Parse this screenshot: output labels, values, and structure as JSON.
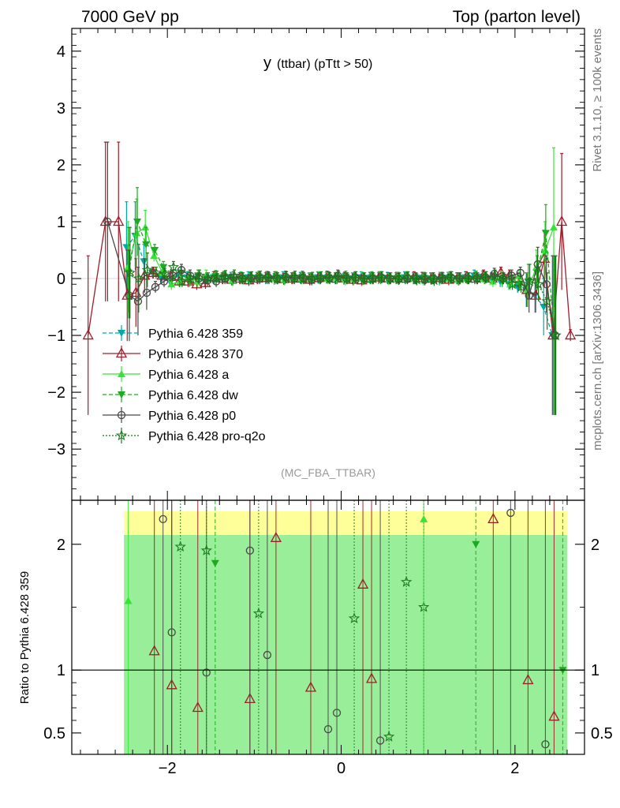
{
  "header": {
    "left": "7000 GeV pp",
    "right": "Top (parton level)"
  },
  "side_labels": {
    "rivet": "Rivet 3.1.10, ≥ 100k events",
    "mcplots": "mcplots.cern.ch [arXiv:1306.3436]"
  },
  "chart_data": [
    {
      "type": "line",
      "title": "y (ttbar) (pTtt > 50)",
      "title_main": "y",
      "title_sub": "(ttbar)  (pTtt > 50)",
      "watermark": "(MC_FBA_TTBAR)",
      "xlabel": "",
      "ylabel": "",
      "xlim": [
        -3.1,
        2.8
      ],
      "ylim": [
        -3.9,
        4.4
      ],
      "xticks": [
        -2,
        0,
        2
      ],
      "yticks": [
        -3,
        -2,
        -1,
        0,
        1,
        2,
        3,
        4
      ],
      "grid": false,
      "legend_position": "middle-left",
      "x": [
        -2.9,
        -2.7,
        -2.55,
        -2.45,
        -2.35,
        -2.25,
        -2.15,
        -2.05,
        -1.95,
        -1.85,
        -1.75,
        -1.65,
        -1.55,
        -1.45,
        -1.35,
        -1.25,
        -1.15,
        -1.05,
        -0.95,
        -0.85,
        -0.75,
        -0.65,
        -0.55,
        -0.45,
        -0.35,
        -0.25,
        -0.15,
        -0.05,
        0.05,
        0.15,
        0.25,
        0.35,
        0.45,
        0.55,
        0.65,
        0.75,
        0.85,
        0.95,
        1.05,
        1.15,
        1.25,
        1.35,
        1.45,
        1.55,
        1.65,
        1.75,
        1.85,
        1.95,
        2.05,
        2.15,
        2.25,
        2.35,
        2.45,
        2.55,
        2.65
      ],
      "series": [
        {
          "name": "Pythia 6.428 359",
          "color": "#00a8a8",
          "marker": "triangle-down-filled",
          "line": "dashed",
          "y": [
            null,
            null,
            null,
            0.55,
            0.75,
            0.3,
            0.1,
            0.0,
            -0.05,
            0.05,
            0.02,
            0.0,
            -0.05,
            0.02,
            0.0,
            0.01,
            0.0,
            0.02,
            0.01,
            0.0,
            -0.01,
            0.02,
            0.0,
            0.01,
            0.0,
            0.02,
            0.01,
            0.0,
            -0.01,
            0.0,
            0.02,
            0.01,
            0.0,
            0.01,
            0.0,
            0.02,
            0.0,
            0.01,
            0.0,
            -0.02,
            0.01,
            0.0,
            0.02,
            0.05,
            0.03,
            0.0,
            -0.05,
            -0.1,
            -0.15,
            -0.2,
            -0.3,
            -0.5,
            -1.0,
            null,
            null
          ]
        },
        {
          "name": "Pythia 6.428 370",
          "color": "#a01c28",
          "marker": "triangle-open",
          "line": "solid",
          "y": [
            -1.0,
            1.0,
            1.0,
            -0.3,
            -0.25,
            0.05,
            0.1,
            0.05,
            0.03,
            -0.05,
            -0.05,
            -0.1,
            -0.08,
            0.02,
            0.0,
            -0.02,
            0.0,
            -0.03,
            0.0,
            0.01,
            0.02,
            -0.01,
            0.0,
            0.0,
            -0.02,
            0.01,
            0.03,
            0.0,
            0.01,
            -0.02,
            -0.03,
            0.0,
            0.02,
            0.0,
            0.01,
            0.0,
            0.02,
            0.01,
            0.0,
            0.01,
            -0.02,
            0.0,
            0.02,
            0.0,
            0.05,
            0.0,
            0.1,
            0.05,
            0.0,
            -0.2,
            -0.3,
            0.35,
            -1.0,
            1.0,
            -1.0
          ]
        },
        {
          "name": "Pythia 6.428 a",
          "color": "#36e436",
          "marker": "triangle-up-filled",
          "line": "solid",
          "y": [
            null,
            null,
            null,
            0.2,
            0.8,
            0.9,
            0.4,
            0.1,
            -0.1,
            -0.05,
            0.03,
            -0.05,
            0.05,
            0.0,
            0.02,
            -0.03,
            0.02,
            0.0,
            0.01,
            0.03,
            0.0,
            -0.02,
            0.01,
            0.0,
            -0.01,
            0.02,
            0.0,
            0.01,
            -0.02,
            0.0,
            0.01,
            0.0,
            0.02,
            -0.01,
            0.0,
            0.01,
            0.0,
            -0.02,
            0.0,
            0.01,
            0.0,
            -0.02,
            0.0,
            0.02,
            0.0,
            -0.05,
            0.03,
            -0.1,
            0.05,
            -0.2,
            0.2,
            0.5,
            0.9,
            null,
            null
          ]
        },
        {
          "name": "Pythia 6.428 dw",
          "color": "#1eaa1e",
          "marker": "triangle-down-filled",
          "line": "dashed",
          "y": [
            null,
            null,
            null,
            0.1,
            1.0,
            0.6,
            0.5,
            0.2,
            0.0,
            0.1,
            -0.05,
            0.05,
            0.0,
            0.04,
            0.03,
            -0.02,
            0.01,
            0.0,
            0.03,
            0.0,
            0.02,
            0.0,
            0.01,
            0.03,
            0.0,
            0.0,
            0.02,
            0.0,
            0.03,
            0.0,
            -0.01,
            0.02,
            0.0,
            0.0,
            0.01,
            0.02,
            0.0,
            0.01,
            0.0,
            0.0,
            0.02,
            -0.02,
            0.0,
            0.03,
            0.0,
            0.0,
            -0.05,
            0.02,
            -0.1,
            -0.05,
            0.1,
            0.8,
            -1.0,
            null,
            null
          ]
        },
        {
          "name": "Pythia 6.428 p0",
          "color": "#474747",
          "marker": "circle-open",
          "line": "solid",
          "y": [
            null,
            1.0,
            null,
            -0.3,
            -0.4,
            -0.25,
            -0.15,
            -0.05,
            0.05,
            0.15,
            0.05,
            0.0,
            -0.03,
            -0.05,
            0.0,
            0.02,
            0.0,
            0.01,
            0.0,
            0.02,
            0.0,
            0.03,
            0.0,
            0.01,
            -0.02,
            0.0,
            0.01,
            0.05,
            0.0,
            0.02,
            0.0,
            0.0,
            0.02,
            0.0,
            -0.01,
            0.0,
            0.0,
            -0.02,
            0.0,
            0.01,
            0.02,
            0.0,
            0.0,
            0.0,
            0.02,
            0.08,
            0.0,
            0.05,
            0.1,
            -0.3,
            0.25,
            -0.1,
            -1.0,
            null,
            null
          ]
        },
        {
          "name": "Pythia 6.428 pro-q2o",
          "color": "#1c7a1c",
          "marker": "star-open",
          "line": "dotted",
          "y": [
            null,
            null,
            null,
            0.1,
            0.0,
            0.15,
            0.1,
            0.08,
            0.2,
            -0.05,
            0.0,
            0.05,
            0.0,
            0.03,
            0.04,
            0.05,
            0.0,
            0.02,
            0.03,
            0.0,
            0.0,
            0.02,
            0.03,
            0.0,
            0.01,
            0.02,
            0.0,
            0.03,
            0.0,
            0.02,
            0.0,
            0.0,
            0.02,
            0.0,
            0.0,
            0.02,
            -0.02,
            0.0,
            -0.03,
            0.0,
            0.02,
            0.0,
            0.0,
            0.0,
            0.02,
            0.05,
            0.0,
            -0.1,
            -0.15,
            -0.05,
            -0.1,
            -0.4,
            -1.0,
            null,
            null
          ]
        }
      ],
      "error_bars": {
        "large_edges": [
          [
            -2.9,
            1.4
          ],
          [
            -2.7,
            1.4
          ],
          [
            -2.55,
            1.4
          ],
          [
            2.45,
            1.4
          ],
          [
            2.55,
            1.2
          ]
        ],
        "medium": [
          [
            -2.45,
            0.8
          ],
          [
            -2.35,
            0.6
          ],
          [
            -2.25,
            0.3
          ],
          [
            2.15,
            0.3
          ],
          [
            2.25,
            0.3
          ],
          [
            2.35,
            0.5
          ]
        ],
        "inner": 0.1
      }
    },
    {
      "type": "line",
      "title": "",
      "ylabel": "Ratio to Pythia 6.428 359",
      "xlim": [
        -3.1,
        2.8
      ],
      "ylim": [
        0.33,
        2.35
      ],
      "yticks": [
        0.5,
        1,
        2
      ],
      "xticks": [
        -2,
        0,
        2
      ],
      "reference_line": 1,
      "band_color_outer": "#ffff99",
      "band_color_inner": "#99ee99",
      "band_x_range": [
        -2.5,
        2.6
      ],
      "visible_points": [
        {
          "series": "Pythia 6.428 370",
          "x": -2.15,
          "y": 1.15
        },
        {
          "series": "Pythia 6.428 370",
          "x": -1.95,
          "y": 0.88
        },
        {
          "series": "Pythia 6.428 370",
          "x": -1.65,
          "y": 0.7
        },
        {
          "series": "Pythia 6.428 370",
          "x": -1.05,
          "y": 0.77
        },
        {
          "series": "Pythia 6.428 370",
          "x": -0.75,
          "y": 2.05
        },
        {
          "series": "Pythia 6.428 370",
          "x": -0.35,
          "y": 0.86
        },
        {
          "series": "Pythia 6.428 370",
          "x": 0.25,
          "y": 1.68
        },
        {
          "series": "Pythia 6.428 370",
          "x": 0.35,
          "y": 0.93
        },
        {
          "series": "Pythia 6.428 370",
          "x": 1.75,
          "y": 2.2
        },
        {
          "series": "Pythia 6.428 370",
          "x": 2.15,
          "y": 0.92
        },
        {
          "series": "Pythia 6.428 370",
          "x": 2.45,
          "y": 0.63
        },
        {
          "series": "Pythia 6.428 p0",
          "x": -2.05,
          "y": 2.2
        },
        {
          "series": "Pythia 6.428 p0",
          "x": -1.95,
          "y": 1.3
        },
        {
          "series": "Pythia 6.428 p0",
          "x": -1.55,
          "y": 0.98
        },
        {
          "series": "Pythia 6.428 p0",
          "x": -1.05,
          "y": 1.95
        },
        {
          "series": "Pythia 6.428 p0",
          "x": -0.85,
          "y": 1.12
        },
        {
          "series": "Pythia 6.428 p0",
          "x": -0.15,
          "y": 0.53
        },
        {
          "series": "Pythia 6.428 p0",
          "x": -0.05,
          "y": 0.66
        },
        {
          "series": "Pythia 6.428 p0",
          "x": 0.45,
          "y": 0.44
        },
        {
          "series": "Pythia 6.428 p0",
          "x": 1.95,
          "y": 2.25
        },
        {
          "series": "Pythia 6.428 p0",
          "x": 2.35,
          "y": 0.41
        },
        {
          "series": "Pythia 6.428 pro-q2o",
          "x": -1.85,
          "y": 1.98
        },
        {
          "series": "Pythia 6.428 pro-q2o",
          "x": -1.55,
          "y": 1.95
        },
        {
          "series": "Pythia 6.428 pro-q2o",
          "x": -0.95,
          "y": 1.45
        },
        {
          "series": "Pythia 6.428 pro-q2o",
          "x": 0.15,
          "y": 1.41
        },
        {
          "series": "Pythia 6.428 pro-q2o",
          "x": 0.55,
          "y": 0.47
        },
        {
          "series": "Pythia 6.428 pro-q2o",
          "x": 0.75,
          "y": 1.7
        },
        {
          "series": "Pythia 6.428 pro-q2o",
          "x": 0.95,
          "y": 1.5
        },
        {
          "series": "Pythia 6.428 dw",
          "x": -1.45,
          "y": 1.85
        },
        {
          "series": "Pythia 6.428 dw",
          "x": 1.55,
          "y": 2.0
        },
        {
          "series": "Pythia 6.428 dw",
          "x": 2.55,
          "y": 1.0
        },
        {
          "series": "Pythia 6.428 a",
          "x": -2.45,
          "y": 1.55
        },
        {
          "series": "Pythia 6.428 a",
          "x": 0.95,
          "y": 2.2
        }
      ]
    }
  ]
}
